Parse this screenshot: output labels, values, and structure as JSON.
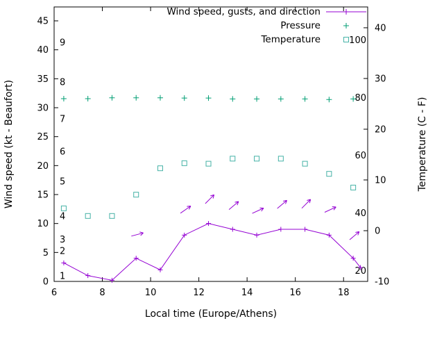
{
  "chart_data": {
    "type": "line",
    "xlabel": "Local time (Europe/Athens)",
    "x_range": [
      6,
      19
    ],
    "x_ticks": [
      6,
      8,
      10,
      12,
      14,
      16,
      18
    ],
    "left_axis": {
      "label": "Wind speed (kt - Beaufort)",
      "range": [
        0,
        47.4
      ],
      "ticks": [
        0,
        5,
        10,
        15,
        20,
        25,
        30,
        35,
        40,
        45
      ]
    },
    "right_axis": {
      "label": "Temperature (C - F)",
      "range": [
        -10,
        44.1
      ],
      "ticks": [
        -10,
        0,
        10,
        20,
        30,
        40
      ]
    },
    "pressure_axis": {
      "range": [
        16.4,
        111.6
      ],
      "labels": [
        100,
        80,
        60,
        40,
        20
      ]
    },
    "beaufort_labels": [
      {
        "label": "1",
        "kt": 0.9
      },
      {
        "label": "2",
        "kt": 5.2
      },
      {
        "label": "3",
        "kt": 7.2
      },
      {
        "label": "4",
        "kt": 11.2
      },
      {
        "label": "5",
        "kt": 17.2
      },
      {
        "label": "6",
        "kt": 22.4
      },
      {
        "label": "7",
        "kt": 28.0
      },
      {
        "label": "8",
        "kt": 34.4
      },
      {
        "label": "9",
        "kt": 41.2
      }
    ],
    "legend": [
      {
        "label": "Wind speed, gusts, and direction",
        "marker": "line-plus",
        "color": "#9400d3"
      },
      {
        "label": "Pressure",
        "marker": "plus",
        "color": "#009e73"
      },
      {
        "label": "Temperature",
        "marker": "square",
        "color": "#45b2a6"
      }
    ],
    "series": {
      "wind": {
        "name": "Wind speed",
        "color": "#9400d3",
        "x": [
          6.4,
          7.4,
          8.4,
          9.4,
          10.4,
          11.4,
          12.4,
          13.4,
          14.4,
          15.4,
          16.4,
          17.4,
          18.4,
          18.7
        ],
        "kt": [
          3.2,
          1.0,
          0.2,
          4.0,
          2.0,
          8.0,
          10.0,
          9.0,
          8.0,
          9.0,
          9.0,
          8.0,
          4.0,
          2.4
        ]
      },
      "gusts": {
        "color": "#9400d3",
        "points": [
          {
            "x": 9.45,
            "kt": 8.1,
            "deg": 15
          },
          {
            "x": 11.45,
            "kt": 12.4,
            "deg": 35
          },
          {
            "x": 12.45,
            "kt": 14.2,
            "deg": 45
          },
          {
            "x": 13.45,
            "kt": 13.1,
            "deg": 40
          },
          {
            "x": 14.45,
            "kt": 12.2,
            "deg": 25
          },
          {
            "x": 15.45,
            "kt": 13.3,
            "deg": 40
          },
          {
            "x": 16.45,
            "kt": 13.4,
            "deg": 45
          },
          {
            "x": 17.45,
            "kt": 12.4,
            "deg": 25
          },
          {
            "x": 18.45,
            "kt": 7.9,
            "deg": 40
          }
        ]
      },
      "pressure": {
        "name": "Pressure",
        "color": "#009e73",
        "x": [
          6.4,
          7.4,
          8.4,
          9.4,
          10.4,
          11.4,
          12.4,
          13.4,
          14.4,
          15.4,
          16.4,
          17.4,
          18.4
        ],
        "values": [
          79.8,
          79.8,
          80.1,
          80.1,
          80.1,
          80.0,
          80.0,
          79.7,
          79.7,
          79.7,
          79.7,
          79.5,
          79.7
        ]
      },
      "temperature": {
        "name": "Temperature",
        "color": "#45b2a6",
        "x": [
          6.4,
          7.4,
          8.4,
          9.4,
          10.4,
          11.4,
          12.4,
          13.4,
          14.4,
          15.4,
          16.4,
          17.4,
          18.4
        ],
        "values_c": [
          4.4,
          2.9,
          2.9,
          7.1,
          12.3,
          13.3,
          13.2,
          14.2,
          14.2,
          14.2,
          13.2,
          11.2,
          8.5
        ]
      }
    }
  }
}
